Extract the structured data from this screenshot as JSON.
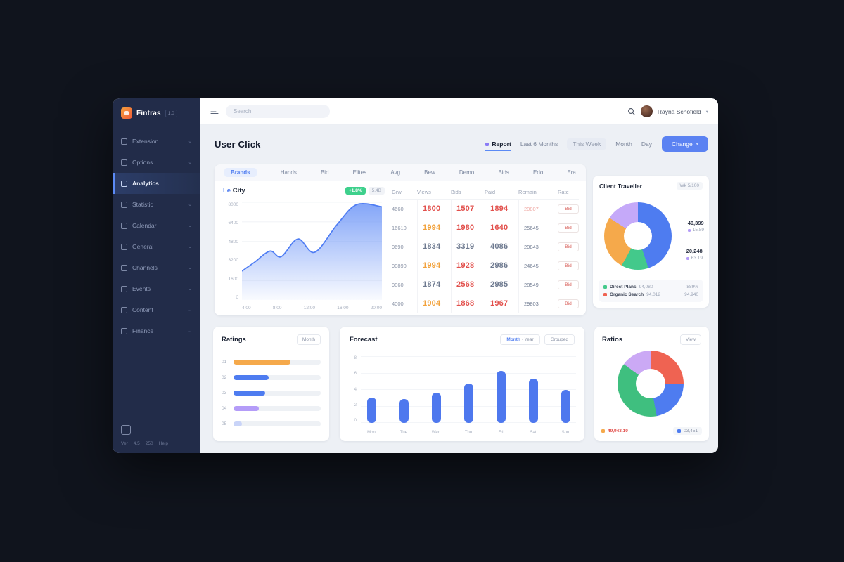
{
  "app": {
    "background": "#10141d",
    "accent": "#5b82f2"
  },
  "sidebar": {
    "logo": {
      "name": "Fintras",
      "suffix": "1.0"
    },
    "items": [
      {
        "label": "Extension",
        "icon": "layers-icon",
        "chevron": true
      },
      {
        "label": "Options",
        "icon": "globe-icon",
        "chevron": true
      },
      {
        "label": "Analytics",
        "icon": "dashboard-icon",
        "active": true
      },
      {
        "label": "Statistic",
        "icon": "phone-icon",
        "chevron": true
      },
      {
        "label": "Calendar",
        "icon": "clock-icon",
        "chevron": true
      },
      {
        "label": "General",
        "icon": "grid-icon",
        "chevron": true
      },
      {
        "label": "Channels",
        "icon": "card-icon",
        "chevron": true
      },
      {
        "label": "Events",
        "icon": "folder-icon",
        "chevron": true
      },
      {
        "label": "Content",
        "icon": "square-icon",
        "chevron": true
      },
      {
        "label": "Finance",
        "icon": "apps-icon",
        "chevron": true
      }
    ],
    "footer_links": [
      "Ver",
      "4.5",
      "250",
      "Help"
    ]
  },
  "header": {
    "search_placeholder": "Search",
    "user_name": "Rayna Schofield"
  },
  "page": {
    "title": "User Click",
    "tabs": [
      {
        "label": "Report",
        "active": true,
        "dot": true
      },
      {
        "label": "Last 6 Months"
      },
      {
        "label": "This Week",
        "pill": true
      },
      {
        "label": "Month"
      },
      {
        "label": "Day"
      }
    ],
    "action_button": "Change"
  },
  "overview": {
    "strip_tabs": [
      {
        "label": "Brands",
        "active": true
      },
      {
        "label": "Hands"
      },
      {
        "label": "Bid"
      },
      {
        "label": "Elites"
      },
      {
        "label": "Avg"
      },
      {
        "label": "Bew"
      },
      {
        "label": "Demo"
      },
      {
        "label": "Bids"
      },
      {
        "label": "Edo"
      },
      {
        "label": "Era"
      }
    ],
    "chart": {
      "title_accent": "Le",
      "title": "City",
      "badge_green": "+1.8%",
      "badge_gray": "5.4B"
    },
    "table": {
      "columns": [
        "Grw",
        "Views",
        "Bids",
        "Paid",
        "Remain",
        "Rate"
      ],
      "rows": [
        {
          "c1": "4660",
          "c2": {
            "t": "1800",
            "c": "red"
          },
          "c3": {
            "t": "1507",
            "c": "red"
          },
          "c4": {
            "t": "1894",
            "c": "red"
          },
          "c5": {
            "t": "20807",
            "c": "lightred"
          },
          "btn": "Bid"
        },
        {
          "c1": "16610",
          "c2": {
            "t": "1994",
            "c": "orange"
          },
          "c3": {
            "t": "1980",
            "c": "red"
          },
          "c4": {
            "t": "1640",
            "c": "red"
          },
          "c5": {
            "t": "25645",
            "c": "gray"
          },
          "btn": "Bid"
        },
        {
          "c1": "9690",
          "c2": {
            "t": "1834",
            "c": "gray"
          },
          "c3": {
            "t": "3319",
            "c": "gray"
          },
          "c4": {
            "t": "4086",
            "c": "gray"
          },
          "c5": {
            "t": "20843",
            "c": "gray"
          },
          "btn": "Bid"
        },
        {
          "c1": "90890",
          "c2": {
            "t": "1994",
            "c": "orange"
          },
          "c3": {
            "t": "1928",
            "c": "red"
          },
          "c4": {
            "t": "2986",
            "c": "gray"
          },
          "c5": {
            "t": "24645",
            "c": "gray"
          },
          "btn": "Bid"
        },
        {
          "c1": "9060",
          "c2": {
            "t": "1874",
            "c": "gray"
          },
          "c3": {
            "t": "2568",
            "c": "red"
          },
          "c4": {
            "t": "2985",
            "c": "gray"
          },
          "c5": {
            "t": "28549",
            "c": "gray"
          },
          "btn": "Bid"
        },
        {
          "c1": "4000",
          "c2": {
            "t": "1904",
            "c": "orange"
          },
          "c3": {
            "t": "1868",
            "c": "red"
          },
          "c4": {
            "t": "1967",
            "c": "red"
          },
          "c5": {
            "t": "29803",
            "c": "gray"
          },
          "btn": "Bid"
        }
      ]
    }
  },
  "traffic": {
    "title": "Client Traveller",
    "badge": "Wk 5/100",
    "annotations": [
      {
        "value": "40,399",
        "sub": "15.89"
      },
      {
        "value": "20,248",
        "sub": "63.19"
      }
    ],
    "legend": [
      {
        "color": "#43c98b",
        "label": "Direct Plans",
        "v1": "94,080",
        "v2": "889%"
      },
      {
        "color": "#ef6352",
        "label": "Organic Search",
        "v1": "94,012",
        "v2": "94,940"
      }
    ]
  },
  "ratings": {
    "title": "Ratings",
    "button": "Month"
  },
  "forecast": {
    "title": "Forecast",
    "button1_primary": "Month",
    "button1_secondary": " · Year",
    "button2": "Grouped"
  },
  "ratios": {
    "title": "Ratios",
    "button": "View",
    "legend_left": "49,943.10",
    "legend_right": "03,451"
  },
  "chart_data": [
    {
      "type": "area",
      "title": "Le City",
      "x_ticks": [
        "4:00",
        "8:00",
        "12:00",
        "16:00",
        "20:00"
      ],
      "y_ticks": [
        "8000",
        "6400",
        "4800",
        "3200",
        "1600",
        "0"
      ],
      "ylim": [
        0,
        8800
      ],
      "points": [
        [
          0,
          2600
        ],
        [
          9,
          3400
        ],
        [
          20,
          4400
        ],
        [
          28,
          3900
        ],
        [
          40,
          5500
        ],
        [
          52,
          4300
        ],
        [
          68,
          6800
        ],
        [
          82,
          8600
        ],
        [
          100,
          8400
        ]
      ],
      "color": "#4f7df3",
      "grid": true,
      "legend": "none"
    },
    {
      "type": "donut",
      "title": "Client Traveller",
      "slices": [
        {
          "label": "Primary",
          "value": 45,
          "color": "#4e7cf0"
        },
        {
          "label": "Success",
          "value": 13,
          "color": "#43c98b"
        },
        {
          "label": "Warning",
          "value": 26,
          "color": "#f5a94b"
        },
        {
          "label": "Violet",
          "value": 16,
          "color": "#c5a9f9"
        }
      ]
    },
    {
      "type": "bar",
      "orientation": "horizontal",
      "title": "Ratings",
      "categories": [
        "01",
        "02",
        "03",
        "04",
        "05"
      ],
      "values": [
        65,
        40,
        36,
        29,
        10
      ],
      "colors": [
        "#f5a94b",
        "#4e7cf0",
        "#4e7cf0",
        "#b49cf8",
        "#c9d4f8"
      ],
      "xlim": [
        0,
        100
      ]
    },
    {
      "type": "bar",
      "orientation": "vertical",
      "title": "Forecast",
      "categories": [
        "Mon",
        "Tue",
        "Wed",
        "Thu",
        "Fri",
        "Sat",
        "Sun"
      ],
      "values": [
        3.0,
        2.9,
        3.6,
        4.7,
        6.2,
        5.3,
        4.0
      ],
      "y_ticks": [
        "8",
        "6",
        "4",
        "2",
        "0"
      ],
      "ylim": [
        0,
        8
      ],
      "color": "#4e78ee",
      "grid": true
    },
    {
      "type": "donut",
      "title": "Ratios",
      "slices": [
        {
          "label": "Coral",
          "value": 25,
          "color": "#ef6352"
        },
        {
          "label": "Blue",
          "value": 22,
          "color": "#4e7cf0"
        },
        {
          "label": "Green",
          "value": 38,
          "color": "#3fbf7f"
        },
        {
          "label": "Lavender",
          "value": 15,
          "color": "#cba9f5"
        }
      ]
    }
  ]
}
